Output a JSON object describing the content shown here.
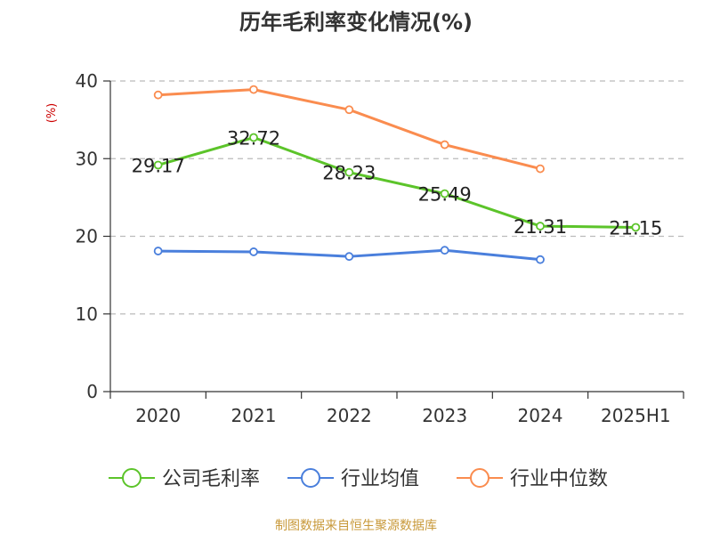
{
  "chart_data": {
    "type": "line",
    "title": "历年毛利率变化情况(%)",
    "ylabel": "(%)",
    "xlabel": "",
    "categories": [
      "2020",
      "2021",
      "2022",
      "2023",
      "2024",
      "2025H1"
    ],
    "ylim": [
      0,
      40
    ],
    "yticks": [
      0,
      10,
      20,
      30,
      40
    ],
    "grid": true,
    "legend_position": "bottom",
    "series": [
      {
        "name": "公司毛利率",
        "color": "#5cc42a",
        "values": [
          29.17,
          32.72,
          28.23,
          25.49,
          21.31,
          21.15
        ],
        "labels": [
          "29.17",
          "32.72",
          "28.23",
          "25.49",
          "21.31",
          "21.15"
        ]
      },
      {
        "name": "行业均值",
        "color": "#4a7fdc",
        "values": [
          18.1,
          18.0,
          17.4,
          18.2,
          17.0,
          null
        ]
      },
      {
        "name": "行业中位数",
        "color": "#fa8c4f",
        "values": [
          38.2,
          38.9,
          36.3,
          31.8,
          28.7,
          null
        ]
      }
    ]
  },
  "footer": {
    "source": "制图数据来自恒生聚源数据库",
    "color": "#c8993a"
  }
}
